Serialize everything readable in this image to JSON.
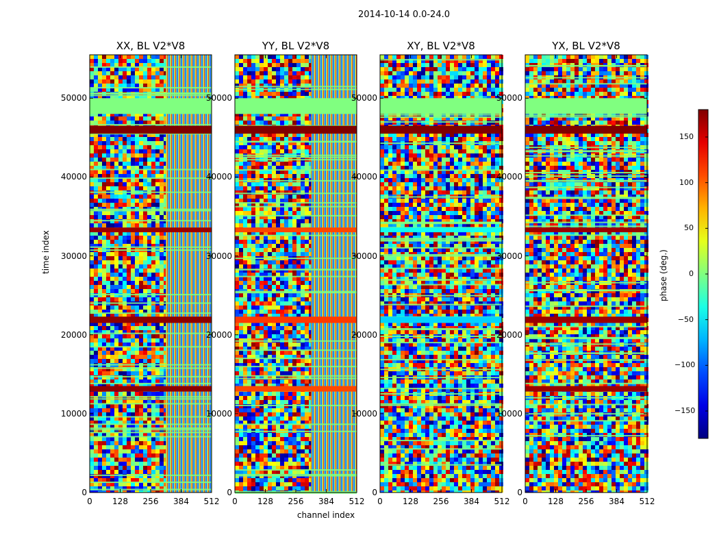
{
  "chart_data": {
    "type": "heatmap",
    "title": "2014-10-14 0.0-24.0",
    "xlabel": "channel index",
    "ylabel": "time index",
    "xlim": [
      0,
      512
    ],
    "ylim": [
      0,
      55500
    ],
    "xticks": [
      "0",
      "128",
      "256",
      "384",
      "512"
    ],
    "yticks": [
      "0",
      "10000",
      "20000",
      "30000",
      "40000",
      "50000"
    ],
    "panels": [
      {
        "title": "XX, BL V2*V8",
        "smooth_cutoff_channel": 320,
        "bands": [
          {
            "t0": 48000,
            "t1": 50000,
            "phase": 0
          },
          {
            "t0": 45500,
            "t1": 46500,
            "phase": 180
          },
          {
            "t0": 33000,
            "t1": 33600,
            "phase": 170
          },
          {
            "t0": 21500,
            "t1": 22300,
            "phase": 175
          },
          {
            "t0": 12800,
            "t1": 13500,
            "phase": 175
          }
        ]
      },
      {
        "title": "YY, BL V2*V8",
        "smooth_cutoff_channel": 320,
        "bands": [
          {
            "t0": 48000,
            "t1": 50000,
            "phase": 0
          },
          {
            "t0": 45500,
            "t1": 46500,
            "phase": 180
          },
          {
            "t0": 33000,
            "t1": 33600,
            "phase": 110
          },
          {
            "t0": 21500,
            "t1": 22300,
            "phase": 115
          },
          {
            "t0": 12800,
            "t1": 13500,
            "phase": 110
          }
        ]
      },
      {
        "title": "XY, BL V2*V8",
        "smooth_cutoff_channel": 0,
        "bands": [
          {
            "t0": 48000,
            "t1": 50000,
            "phase": 0
          },
          {
            "t0": 45500,
            "t1": 46500,
            "phase": 180
          },
          {
            "t0": 33000,
            "t1": 33600,
            "phase": -40
          },
          {
            "t0": 21500,
            "t1": 22300,
            "phase": -60
          }
        ]
      },
      {
        "title": "YX, BL V2*V8",
        "smooth_cutoff_channel": 0,
        "bands": [
          {
            "t0": 48000,
            "t1": 50000,
            "phase": 0
          },
          {
            "t0": 45500,
            "t1": 46500,
            "phase": 180
          },
          {
            "t0": 33000,
            "t1": 33600,
            "phase": 170
          },
          {
            "t0": 21500,
            "t1": 22300,
            "phase": 170
          },
          {
            "t0": 12800,
            "t1": 13500,
            "phase": 170
          }
        ]
      }
    ],
    "colorbar": {
      "label": "phase (deg.)",
      "range": [
        -180,
        180
      ],
      "ticks": [
        "150",
        "100",
        "50",
        "0",
        "−50",
        "−100",
        "−150"
      ],
      "colormap": "jet"
    }
  }
}
